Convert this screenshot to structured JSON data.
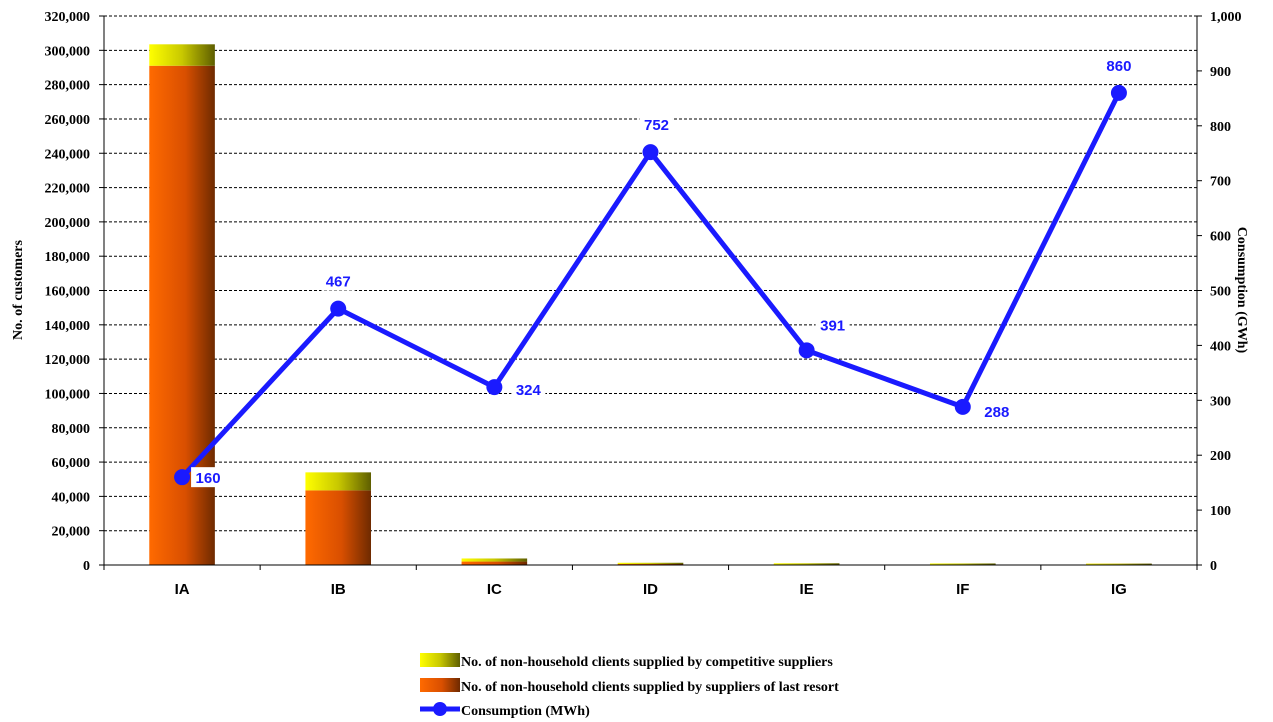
{
  "chart_data": {
    "type": "bar",
    "stacked": true,
    "categories": [
      "IA",
      "IB",
      "IC",
      "ID",
      "IE",
      "IF",
      "IG"
    ],
    "series": [
      {
        "name": "No. of non-household clients supplied by suppliers of last resort",
        "type": "bar",
        "axis": "left",
        "values": [
          291000,
          43500,
          2000,
          600,
          300,
          200,
          100
        ],
        "color_light": "#ff6600",
        "color_dark": "#7a2e00"
      },
      {
        "name": "No. of  non-household clients supplied by competitive suppliers",
        "type": "bar",
        "axis": "left",
        "values": [
          12500,
          10500,
          1800,
          700,
          500,
          400,
          300
        ],
        "color_light": "#ffff00",
        "color_dark": "#6b6b00"
      },
      {
        "name": "Consumption (MWh)",
        "type": "line",
        "axis": "right",
        "values": [
          160,
          467,
          324,
          752,
          391,
          288,
          860
        ],
        "labels": [
          "160",
          "467",
          "324",
          "752",
          "391",
          "288",
          "860"
        ],
        "color": "#1a1aff"
      }
    ],
    "ylabel": "No. of customers",
    "y2label": "Consumption  (GWh)",
    "ylim": [
      0,
      320000
    ],
    "y2lim": [
      0,
      1000
    ],
    "yticks": [
      "0",
      "20,000",
      "40,000",
      "60,000",
      "80,000",
      "100,000",
      "120,000",
      "140,000",
      "160,000",
      "180,000",
      "200,000",
      "220,000",
      "240,000",
      "260,000",
      "280,000",
      "300,000",
      "320,000"
    ],
    "y2ticks": [
      "0",
      "100",
      "200",
      "300",
      "400",
      "500",
      "600",
      "700",
      "800",
      "900",
      "1,000"
    ],
    "grid": true,
    "legend_position": "bottom"
  }
}
